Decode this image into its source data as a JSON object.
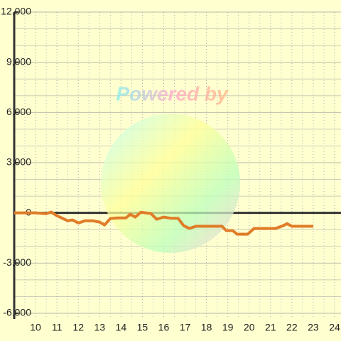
{
  "chart_data": {
    "type": "line",
    "watermark": "Powered by",
    "x": [
      9,
      10,
      10.5,
      10.73,
      11,
      11.5,
      11.73,
      12,
      12.33,
      12.67,
      13,
      13.23,
      13.5,
      13.83,
      14.23,
      14.43,
      14.67,
      14.93,
      15.4,
      15.67,
      16,
      16.33,
      16.67,
      16.93,
      17.2,
      17.5,
      17.83,
      18.73,
      18.93,
      19.23,
      19.43,
      19.93,
      20.23,
      21.23,
      21.6,
      21.77,
      22,
      23
    ],
    "series": [
      {
        "color": "#e07c28",
        "values": [
          0,
          0,
          -50,
          50,
          -170,
          -470,
          -420,
          -600,
          -470,
          -470,
          -550,
          -720,
          -340,
          -300,
          -300,
          -85,
          -250,
          40,
          -40,
          -380,
          -250,
          -320,
          -320,
          -760,
          -930,
          -800,
          -800,
          -800,
          -1060,
          -1060,
          -1270,
          -1270,
          -930,
          -930,
          -760,
          -640,
          -800,
          -800
        ]
      }
    ],
    "xlim": [
      9,
      24.3
    ],
    "ylim": [
      -6000,
      12000
    ],
    "xticks": [
      10,
      11,
      12,
      13,
      14,
      15,
      16,
      17,
      18,
      19,
      20,
      21,
      22,
      23,
      24
    ],
    "xminorticks": [
      9.5,
      10.5,
      11.5,
      12.5,
      13.5,
      14.5,
      15.5,
      16.5,
      17.5,
      18.5,
      19.5,
      20.5,
      21.5,
      22.5,
      23.5
    ],
    "yticks": [
      {
        "value": -6000,
        "label": "-6,000"
      },
      {
        "value": -3000,
        "label": "-3,000"
      },
      0,
      {
        "value": 3000,
        "label": "3,000"
      },
      {
        "value": 6000,
        "label": "6,000"
      },
      {
        "value": 9000,
        "label": "9,000"
      },
      {
        "value": 12000,
        "label": "12,000"
      }
    ],
    "yminorticks": [
      -5000,
      -4000,
      -2000,
      -1000,
      1000,
      2000,
      4000,
      5000,
      7000,
      8000,
      10000,
      11000
    ],
    "grid": true
  }
}
